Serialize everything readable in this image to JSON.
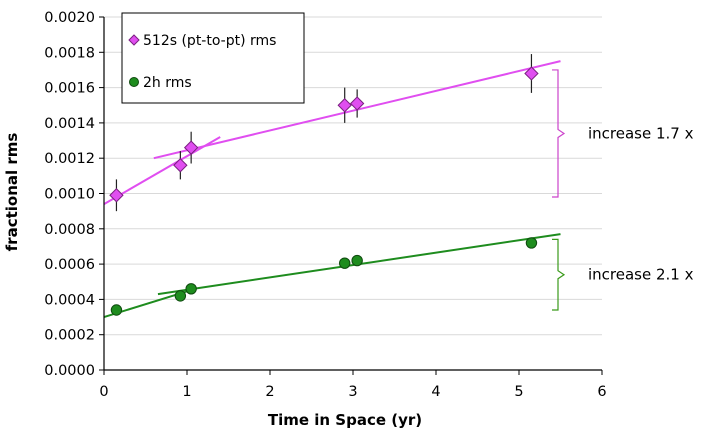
{
  "chart_data": {
    "type": "scatter",
    "title": "",
    "xlabel": "Time in Space (yr)",
    "ylabel": "fractional rms",
    "xlim": [
      0,
      6
    ],
    "ylim": [
      0,
      0.002
    ],
    "x_ticks": [
      "0",
      "1",
      "2",
      "3",
      "4",
      "5",
      "6"
    ],
    "y_ticks": [
      "0.0000",
      "0.0002",
      "0.0004",
      "0.0006",
      "0.0008",
      "0.0010",
      "0.0012",
      "0.0014",
      "0.0016",
      "0.0018",
      "0.0020"
    ],
    "grid": "horizontal",
    "legend_placement": "top-left",
    "series": [
      {
        "name": "512s (pt-to-pt)  rms",
        "marker": "diamond",
        "color": "#e04ef0",
        "points": [
          {
            "x": 0.15,
            "y": 0.00099,
            "err": 9e-05
          },
          {
            "x": 0.92,
            "y": 0.00116,
            "err": 8e-05
          },
          {
            "x": 1.05,
            "y": 0.00126,
            "err": 9e-05
          },
          {
            "x": 2.9,
            "y": 0.0015,
            "err": 0.0001
          },
          {
            "x": 3.05,
            "y": 0.00151,
            "err": 8e-05
          },
          {
            "x": 5.15,
            "y": 0.00168,
            "err": 0.00011
          }
        ],
        "fit_lines": [
          {
            "x": [
              0.0,
              1.4
            ],
            "y": [
              0.00094,
              0.00132
            ]
          },
          {
            "x": 0.6,
            "x_end": 5.5,
            "y": [
              0.0012,
              0.00175
            ]
          }
        ]
      },
      {
        "name": "2h rms",
        "marker": "circle",
        "color": "#1e8c1e",
        "points": [
          {
            "x": 0.15,
            "y": 0.00034,
            "err": 0
          },
          {
            "x": 0.92,
            "y": 0.00042,
            "err": 0
          },
          {
            "x": 1.05,
            "y": 0.00046,
            "err": 0
          },
          {
            "x": 2.9,
            "y": 0.000605,
            "err": 3e-05
          },
          {
            "x": 3.05,
            "y": 0.00062,
            "err": 3e-05
          },
          {
            "x": 5.15,
            "y": 0.00072,
            "err": 3e-05
          }
        ],
        "fit_lines": [
          {
            "x": [
              0.0,
              1.1
            ],
            "y": [
              0.0003,
              0.00046
            ]
          },
          {
            "x": [
              0.65,
              5.5
            ],
            "y": [
              0.00043,
              0.00077
            ]
          }
        ]
      }
    ],
    "annotations": [
      {
        "text": "increase 1.7 x",
        "bracket_y": [
          0.00098,
          0.0017
        ],
        "color": "#cc44cc"
      },
      {
        "text": "increase 2.1 x",
        "bracket_y": [
          0.00034,
          0.00074
        ],
        "color": "#3a9a1a"
      }
    ],
    "colors": {
      "background": "#ffffff",
      "plot_area": "#ffffff",
      "grid": "#d9d9d9"
    }
  }
}
